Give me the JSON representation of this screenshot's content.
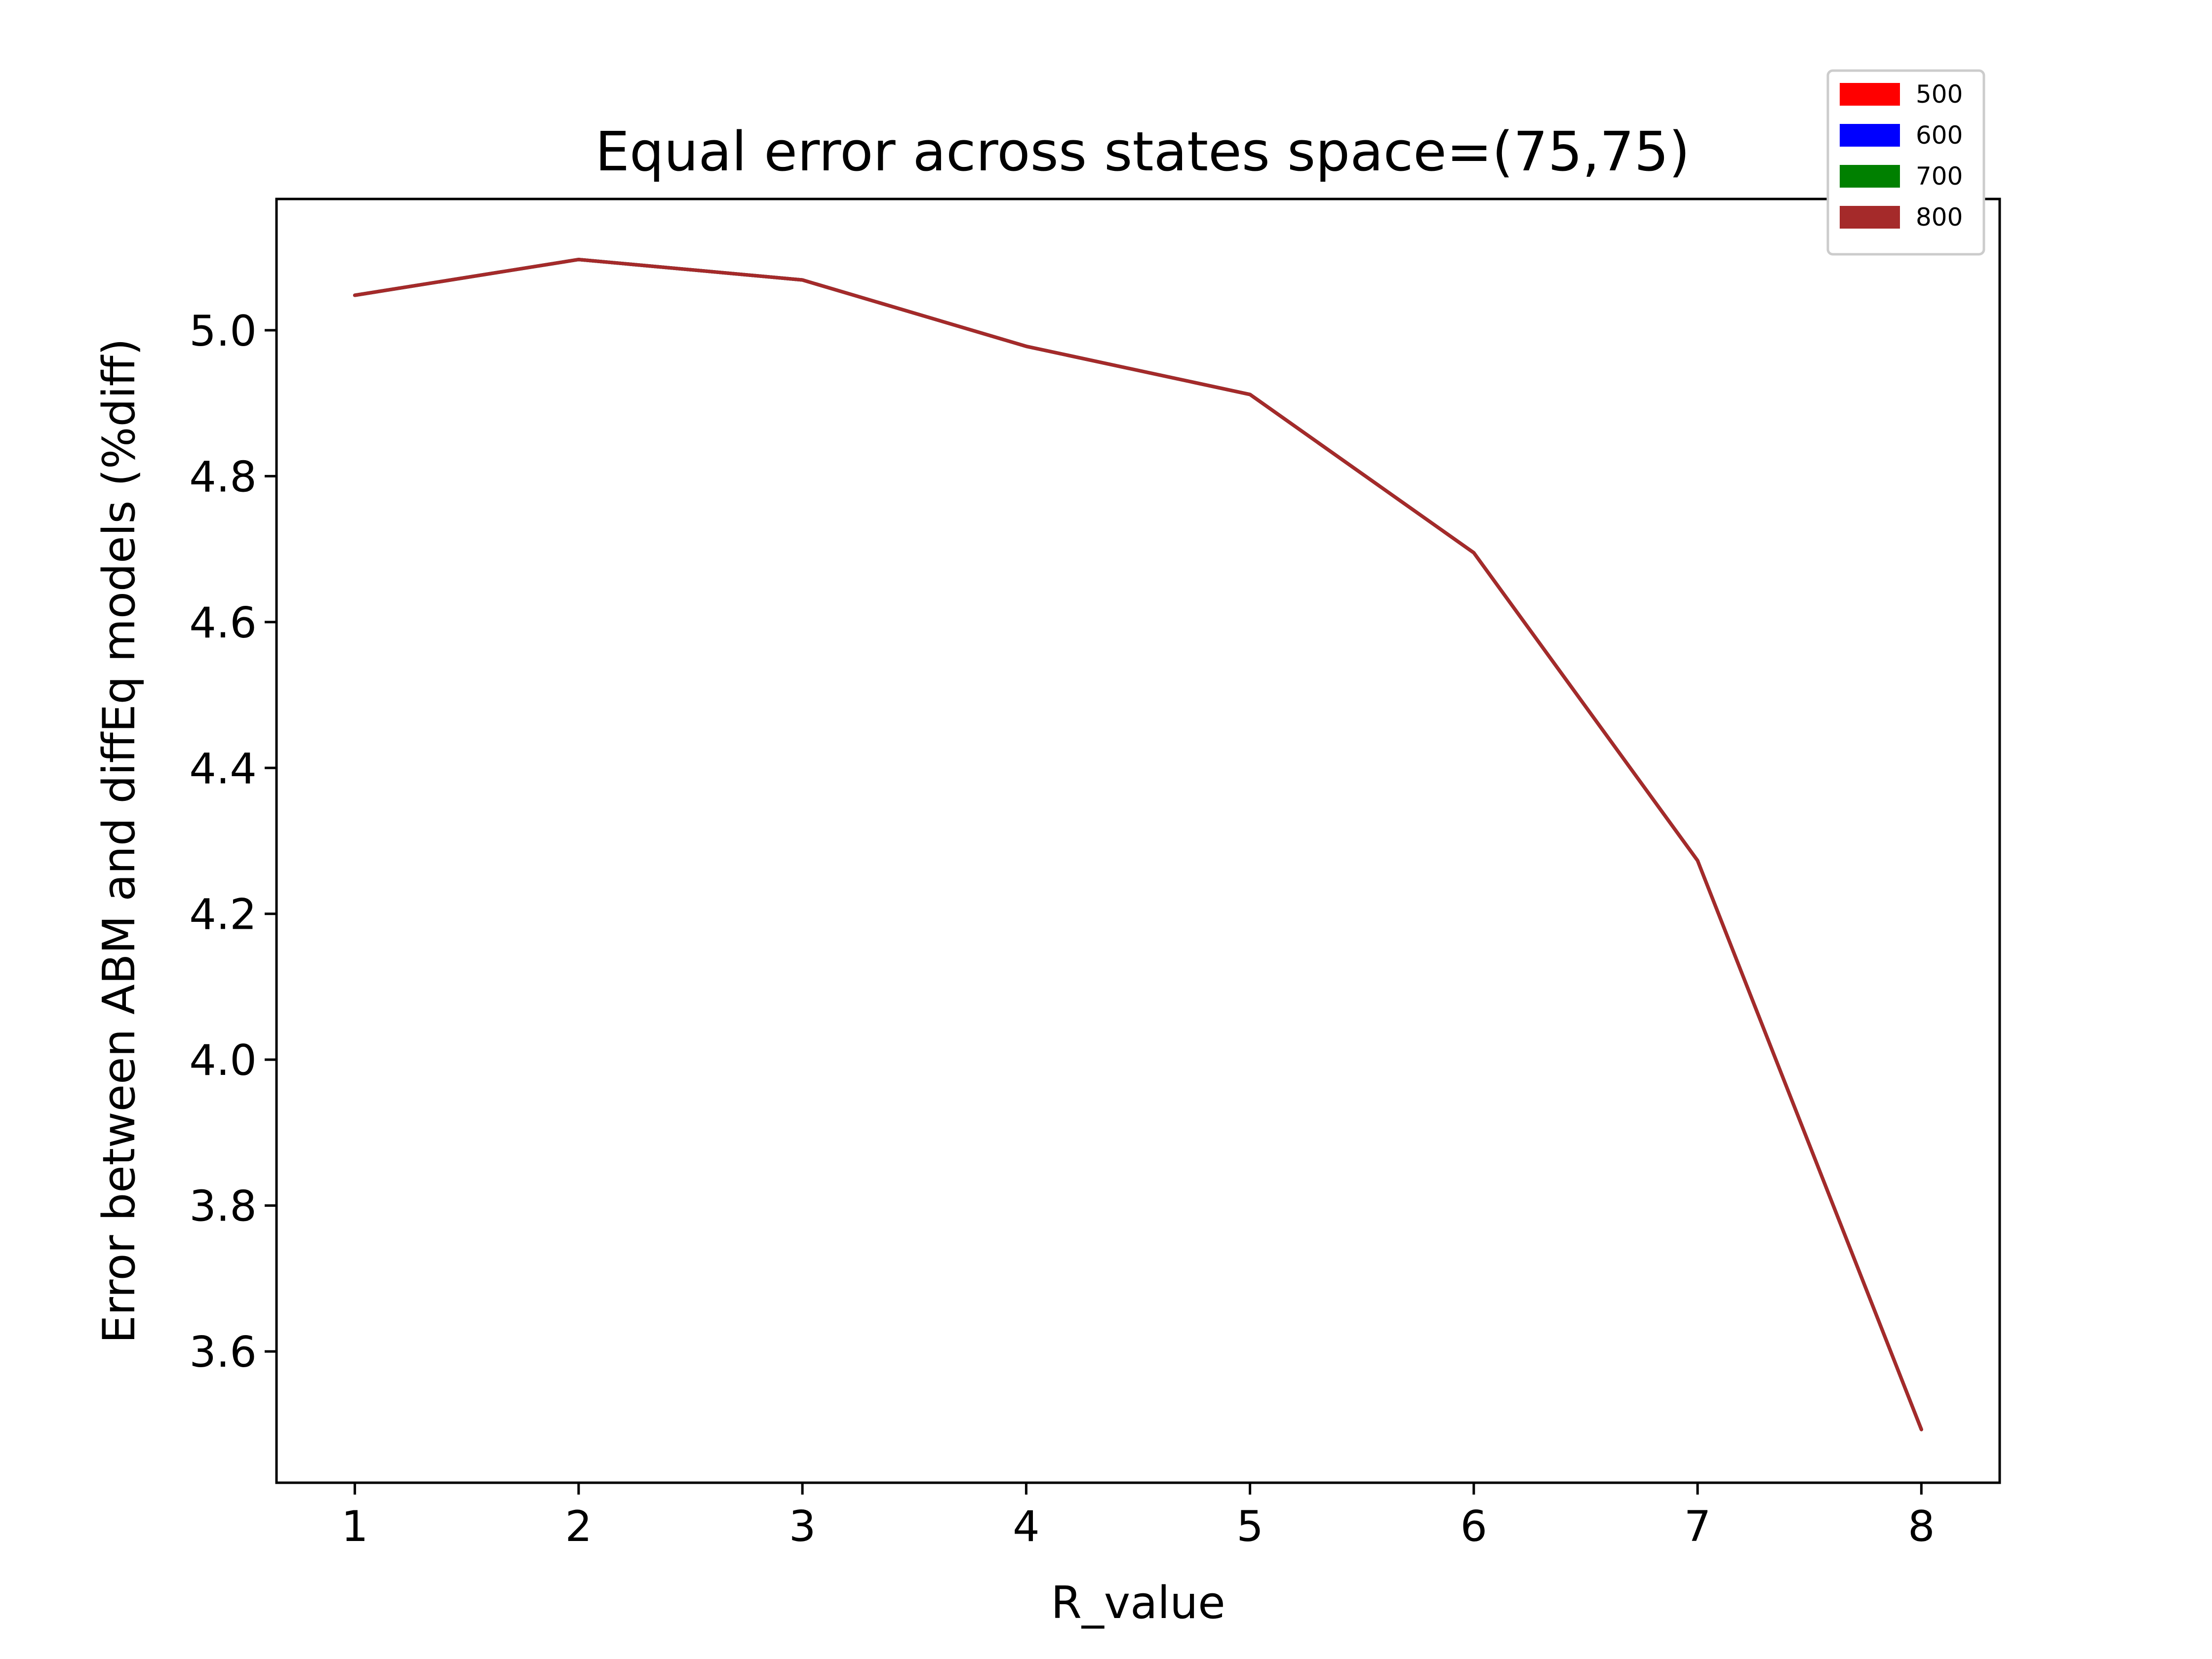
{
  "chart_data": {
    "type": "line",
    "title": "Equal error across states space=(75,75)",
    "xlabel": "R_value",
    "ylabel": "Error between ABM and diffEq models (%diff)",
    "x": [
      1,
      2,
      3,
      4,
      5,
      6,
      7,
      8
    ],
    "xticks": [
      "1",
      "2",
      "3",
      "4",
      "5",
      "6",
      "7",
      "8"
    ],
    "yticks": [
      "3.6",
      "3.8",
      "4.0",
      "4.2",
      "4.4",
      "4.6",
      "4.8",
      "5.0"
    ],
    "xlim": [
      0.65,
      8.35
    ],
    "ylim": [
      3.42,
      5.18
    ],
    "grid": false,
    "legend_position": "top-right",
    "legend": [
      {
        "label": "500",
        "color": "#ff0000"
      },
      {
        "label": "600",
        "color": "#0000ff"
      },
      {
        "label": "700",
        "color": "#008000"
      },
      {
        "label": "800",
        "color": "#a52a2a"
      }
    ],
    "series": [
      {
        "name": "500",
        "color": "#ff0000",
        "values": [
          5.048,
          5.097,
          5.069,
          4.978,
          4.912,
          4.695,
          4.273,
          3.493
        ]
      },
      {
        "name": "600",
        "color": "#0000ff",
        "values": [
          5.048,
          5.097,
          5.069,
          4.978,
          4.912,
          4.695,
          4.273,
          3.493
        ]
      },
      {
        "name": "700",
        "color": "#008000",
        "values": [
          5.048,
          5.097,
          5.069,
          4.978,
          4.912,
          4.695,
          4.273,
          3.493
        ]
      },
      {
        "name": "800",
        "color": "#a52a2a",
        "values": [
          5.048,
          5.097,
          5.069,
          4.978,
          4.912,
          4.695,
          4.273,
          3.493
        ]
      }
    ]
  }
}
